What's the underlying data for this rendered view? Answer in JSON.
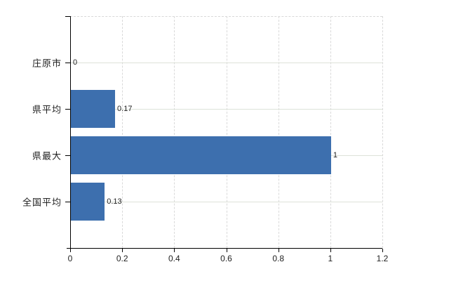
{
  "chart_data": {
    "type": "bar",
    "orientation": "horizontal",
    "title": "",
    "categories": [
      "庄原市",
      "県平均",
      "県最大",
      "全国平均"
    ],
    "values": [
      0,
      0.17,
      1,
      0.13
    ],
    "value_labels": [
      "0",
      "0.17",
      "1",
      "0.13"
    ],
    "xlim": [
      0,
      1.2
    ],
    "x_ticks": [
      0,
      0.2,
      0.4,
      0.6,
      0.8,
      1,
      1.2
    ],
    "x_tick_labels": [
      "0",
      "0.2",
      "0.4",
      "0.6",
      "0.8",
      "1",
      "1.2"
    ],
    "grid": true,
    "legend": "none",
    "colors": {
      "bar": "#3d6fae",
      "axis": "#000000",
      "gridline_horizontal": "#dde2d9",
      "gridline_vertical": "#d9d9d9",
      "text": "#222222",
      "background": "#ffffff"
    }
  }
}
